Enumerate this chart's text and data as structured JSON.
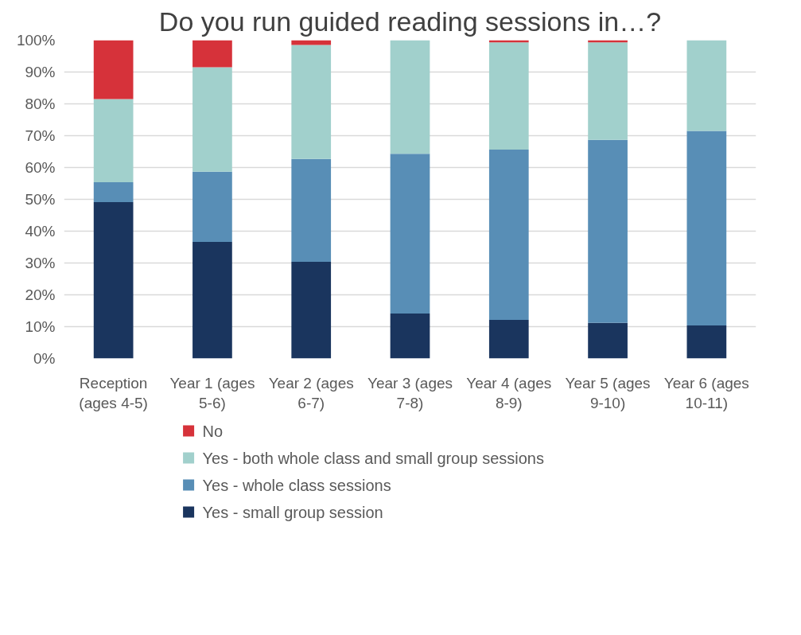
{
  "chart_data": {
    "type": "bar",
    "stacked": true,
    "title": "Do you run guided reading sessions in…?",
    "categories": [
      "Reception\n(ages 4-5)",
      "Year 1 (ages\n5-6)",
      "Year 2 (ages\n6-7)",
      "Year 3 (ages\n7-8)",
      "Year 4 (ages\n8-9)",
      "Year 5 (ages\n9-10)",
      "Year 6 (ages\n10-11)"
    ],
    "series": [
      {
        "name": "Yes - small group session",
        "color": "#1a355e",
        "values": [
          49.1,
          36.6,
          30.4,
          14.1,
          12.1,
          11.2,
          10.4
        ]
      },
      {
        "name": "Yes - whole class sessions",
        "color": "#588eb6",
        "values": [
          6.3,
          22.1,
          32.3,
          50.2,
          53.5,
          57.5,
          61.1
        ]
      },
      {
        "name": "Yes - both whole class and small group sessions",
        "color": "#a1d0cc",
        "values": [
          26.1,
          32.8,
          35.8,
          35.7,
          33.7,
          30.6,
          28.5
        ]
      },
      {
        "name": "No",
        "color": "#d6323a",
        "values": [
          18.5,
          8.5,
          1.5,
          0,
          0.7,
          0.7,
          0
        ]
      }
    ],
    "ylim": [
      0,
      100
    ],
    "yticks": [
      {
        "value": 0,
        "label": "0%"
      },
      {
        "value": 10,
        "label": "10%"
      },
      {
        "value": 20,
        "label": "20%"
      },
      {
        "value": 30,
        "label": "30%"
      },
      {
        "value": 40,
        "label": "40%"
      },
      {
        "value": 50,
        "label": "50%"
      },
      {
        "value": 60,
        "label": "60%"
      },
      {
        "value": 70,
        "label": "70%"
      },
      {
        "value": 80,
        "label": "80%"
      },
      {
        "value": 90,
        "label": "90%"
      },
      {
        "value": 100,
        "label": "100%"
      }
    ],
    "grid": "y",
    "legend": "bottom"
  }
}
